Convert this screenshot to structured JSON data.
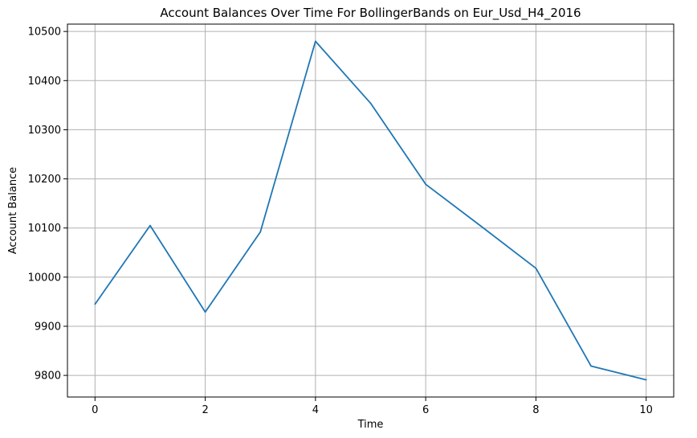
{
  "chart_data": {
    "type": "line",
    "title": "Account Balances Over Time For BollingerBands on Eur_Usd_H4_2016",
    "xlabel": "Time",
    "ylabel": "Account Balance",
    "x": [
      0,
      1,
      2,
      3,
      4,
      5,
      6,
      7,
      8,
      9,
      10
    ],
    "series": [
      {
        "values": [
          9945,
          10105,
          9929,
          10092,
          10480,
          10354,
          10189,
          10104,
          10018,
          9819,
          9791
        ],
        "color": "#1f77b4"
      }
    ],
    "xlim": [
      -0.5,
      10.5
    ],
    "ylim": [
      9756,
      10515
    ],
    "xticks": [
      0,
      2,
      4,
      6,
      8,
      10
    ],
    "yticks": [
      9800,
      9900,
      10000,
      10100,
      10200,
      10300,
      10400,
      10500
    ],
    "grid": true,
    "grid_color": "#b0b0b0",
    "legend": false
  }
}
